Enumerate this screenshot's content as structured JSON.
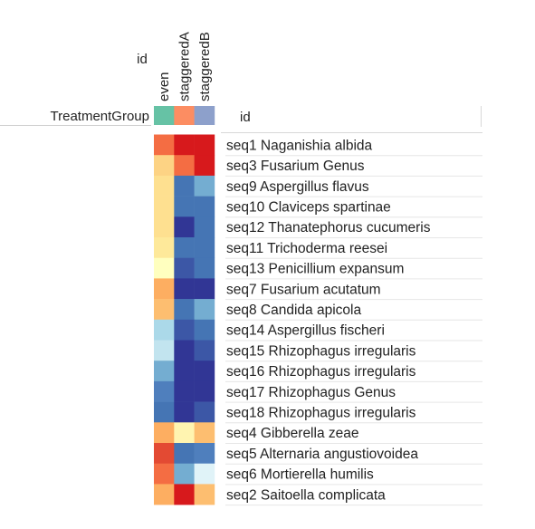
{
  "chart_data": {
    "type": "heatmap",
    "col_header_label": "id",
    "row_header_label": "id",
    "columns": [
      "even",
      "staggeredA",
      "staggeredB"
    ],
    "annotation": {
      "name": "TreatmentGroup",
      "colors": [
        "#66c2a5",
        "#fc8d62",
        "#8da0cb"
      ]
    },
    "rows": [
      "seq1 Naganishia albida",
      "seq3 Fusarium Genus",
      "seq9 Aspergillus flavus",
      "seq10 Claviceps spartinae",
      "seq12 Thanatephorus cucumeris",
      "seq11 Trichoderma reesei",
      "seq13 Penicillium expansum",
      "seq7 Fusarium acutatum",
      "seq8 Candida apicola",
      "seq14 Aspergillus fischeri",
      "seq15 Rhizophagus irregularis",
      "seq16 Rhizophagus irregularis",
      "seq17 Rhizophagus Genus",
      "seq18 Rhizophagus irregularis",
      "seq4 Gibberella zeae",
      "seq5 Alternaria angustiovoidea",
      "seq6 Mortierella humilis",
      "seq2 Saitoella complicata"
    ],
    "cell_colors": [
      [
        "#f46d43",
        "#d7191c",
        "#d7191c"
      ],
      [
        "#fdd384",
        "#f46d43",
        "#d7191c"
      ],
      [
        "#fee090",
        "#4575b4",
        "#74add1"
      ],
      [
        "#fee090",
        "#4575b4",
        "#4575b4"
      ],
      [
        "#fee090",
        "#313695",
        "#4575b4"
      ],
      [
        "#fee99a",
        "#4575b4",
        "#4575b4"
      ],
      [
        "#ffffbf",
        "#3c57a6",
        "#4575b4"
      ],
      [
        "#fdae61",
        "#313695",
        "#313695"
      ],
      [
        "#fdbe70",
        "#4575b4",
        "#74add1"
      ],
      [
        "#abd9e9",
        "#3c57a6",
        "#4575b4"
      ],
      [
        "#c2e4ef",
        "#313695",
        "#3c57a6"
      ],
      [
        "#74add1",
        "#313695",
        "#313695"
      ],
      [
        "#4f7fbd",
        "#313695",
        "#313695"
      ],
      [
        "#4575b4",
        "#313695",
        "#3c57a6"
      ],
      [
        "#fdae61",
        "#fff4b0",
        "#fdbe70"
      ],
      [
        "#e34a33",
        "#4575b4",
        "#4f7fbd"
      ],
      [
        "#f46d43",
        "#74add1",
        "#e0f3f8"
      ],
      [
        "#fdae61",
        "#d7191c",
        "#fdbe70"
      ]
    ]
  }
}
